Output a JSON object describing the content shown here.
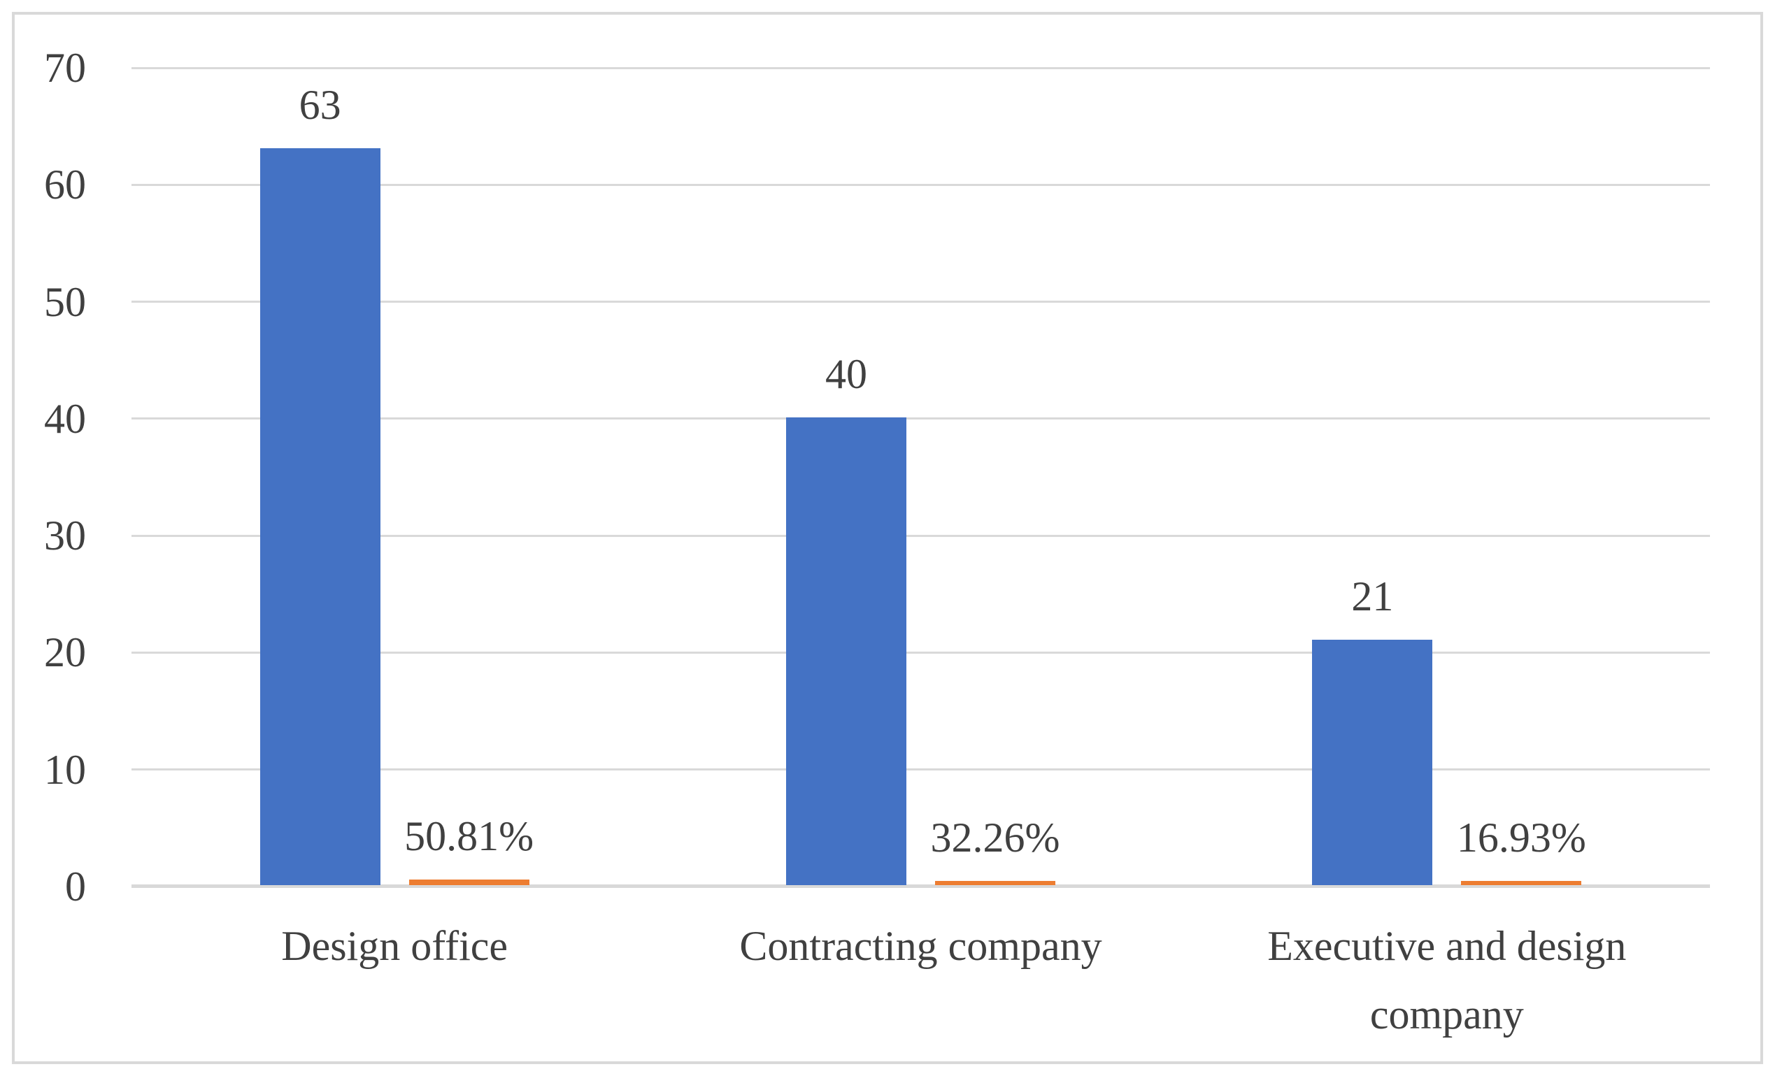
{
  "chart_data": {
    "type": "bar",
    "title": "",
    "xlabel": "",
    "ylabel": "",
    "categories": [
      "Design office",
      "Contracting company",
      "Executive and design company"
    ],
    "series": [
      {
        "color": "#4472C4",
        "values": [
          63,
          40,
          21
        ],
        "data_labels": [
          "63",
          "40",
          "21"
        ]
      },
      {
        "color": "#ED7D31",
        "values": [
          0.5081,
          0.3226,
          0.1693
        ],
        "data_labels": [
          "50.81%",
          "32.26%",
          "16.93%"
        ]
      }
    ],
    "ylim": [
      0,
      70
    ],
    "yticks": [
      0,
      10,
      20,
      30,
      40,
      50,
      60,
      70
    ],
    "grid": true,
    "legend_position": "none",
    "colors": {
      "gridline": "#D9D9D9",
      "axis_line": "#D9D9D9",
      "plot_border": "#D9D9D9",
      "text": "#404040",
      "background": "#FFFFFF"
    }
  }
}
